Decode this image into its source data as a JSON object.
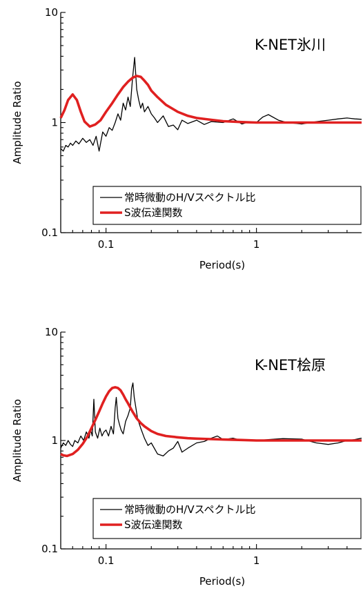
{
  "chart_data": [
    {
      "type": "line",
      "station": "K-NET氷川",
      "xlabel": "Period(s)",
      "ylabel": "Amplitude Ratio",
      "xscale": "log",
      "yscale": "log",
      "xlim": [
        0.05,
        5
      ],
      "ylim": [
        0.1,
        10
      ],
      "xticks": [
        "0.1",
        "1"
      ],
      "yticks": [
        "0.1",
        "1",
        "10"
      ],
      "legend": {
        "placement": "bottom-right"
      },
      "series": [
        {
          "name": "常時微動のH/Vスペクトル比",
          "color": "#000000",
          "x": [
            0.05,
            0.052,
            0.054,
            0.056,
            0.058,
            0.06,
            0.063,
            0.066,
            0.07,
            0.074,
            0.078,
            0.082,
            0.086,
            0.09,
            0.095,
            0.1,
            0.105,
            0.11,
            0.115,
            0.12,
            0.125,
            0.13,
            0.135,
            0.14,
            0.145,
            0.15,
            0.155,
            0.16,
            0.165,
            0.17,
            0.175,
            0.18,
            0.19,
            0.2,
            0.21,
            0.22,
            0.24,
            0.26,
            0.28,
            0.3,
            0.32,
            0.35,
            0.4,
            0.45,
            0.5,
            0.6,
            0.7,
            0.8,
            0.9,
            1.0,
            1.1,
            1.2,
            1.4,
            1.6,
            2.0,
            2.5,
            3.0,
            3.5,
            4.0,
            4.5,
            5.0
          ],
          "values": [
            0.58,
            0.55,
            0.62,
            0.6,
            0.65,
            0.62,
            0.68,
            0.64,
            0.72,
            0.66,
            0.7,
            0.62,
            0.75,
            0.55,
            0.82,
            0.75,
            0.9,
            0.85,
            1.0,
            1.2,
            1.05,
            1.5,
            1.3,
            1.7,
            1.4,
            2.5,
            3.9,
            2.0,
            1.6,
            1.35,
            1.5,
            1.25,
            1.4,
            1.2,
            1.1,
            1.0,
            1.15,
            0.92,
            0.95,
            0.86,
            1.05,
            0.98,
            1.05,
            0.96,
            1.02,
            1.0,
            1.08,
            0.97,
            1.02,
            1.0,
            1.12,
            1.18,
            1.05,
            1.0,
            0.97,
            1.02,
            1.05,
            1.08,
            1.1,
            1.08,
            1.07
          ]
        },
        {
          "name": "S波伝達関数",
          "color": "#e02020",
          "x": [
            0.05,
            0.053,
            0.056,
            0.06,
            0.064,
            0.068,
            0.072,
            0.078,
            0.085,
            0.092,
            0.1,
            0.11,
            0.12,
            0.13,
            0.14,
            0.15,
            0.16,
            0.17,
            0.18,
            0.19,
            0.2,
            0.22,
            0.25,
            0.3,
            0.35,
            0.4,
            0.5,
            0.6,
            0.8,
            1.0,
            1.5,
            2.0,
            3.0,
            5.0
          ],
          "values": [
            1.1,
            1.3,
            1.6,
            1.8,
            1.6,
            1.25,
            1.02,
            0.92,
            0.96,
            1.05,
            1.25,
            1.5,
            1.8,
            2.1,
            2.35,
            2.55,
            2.65,
            2.6,
            2.4,
            2.2,
            1.95,
            1.7,
            1.45,
            1.25,
            1.15,
            1.1,
            1.06,
            1.03,
            1.01,
            1.0,
            1.0,
            1.0,
            1.0,
            1.0
          ]
        }
      ]
    },
    {
      "type": "line",
      "station": "K-NET桧原",
      "xlabel": "Period(s)",
      "ylabel": "Amplitude Ratio",
      "xscale": "log",
      "yscale": "log",
      "xlim": [
        0.05,
        5
      ],
      "ylim": [
        0.1,
        10
      ],
      "xticks": [
        "0.1",
        "1"
      ],
      "yticks": [
        "0.1",
        "1",
        "10"
      ],
      "legend": {
        "placement": "bottom-right"
      },
      "series": [
        {
          "name": "常時微動のH/Vスペクトル比",
          "color": "#000000",
          "x": [
            0.05,
            0.052,
            0.054,
            0.056,
            0.058,
            0.06,
            0.062,
            0.065,
            0.068,
            0.071,
            0.074,
            0.077,
            0.079,
            0.081,
            0.083,
            0.085,
            0.088,
            0.091,
            0.094,
            0.097,
            0.1,
            0.104,
            0.108,
            0.112,
            0.115,
            0.117,
            0.12,
            0.123,
            0.126,
            0.13,
            0.135,
            0.14,
            0.145,
            0.148,
            0.151,
            0.154,
            0.158,
            0.162,
            0.17,
            0.18,
            0.19,
            0.2,
            0.22,
            0.24,
            0.26,
            0.28,
            0.3,
            0.32,
            0.35,
            0.4,
            0.45,
            0.5,
            0.55,
            0.6,
            0.7,
            0.8,
            0.9,
            1.0,
            1.2,
            1.5,
            2.0,
            2.5,
            3.0,
            3.5,
            4.0,
            4.5,
            5.0
          ],
          "values": [
            0.85,
            0.95,
            0.9,
            1.0,
            0.92,
            0.88,
            1.0,
            0.95,
            1.1,
            1.0,
            1.2,
            1.05,
            1.25,
            1.1,
            2.4,
            1.2,
            1.05,
            1.3,
            1.1,
            1.2,
            1.25,
            1.1,
            1.35,
            1.15,
            2.0,
            2.5,
            1.6,
            1.4,
            1.25,
            1.15,
            1.5,
            1.7,
            2.0,
            3.0,
            3.4,
            2.5,
            2.0,
            1.6,
            1.3,
            1.05,
            0.9,
            0.95,
            0.75,
            0.72,
            0.8,
            0.85,
            0.98,
            0.78,
            0.85,
            0.95,
            0.98,
            1.05,
            1.1,
            1.02,
            1.05,
            1.0,
            1.02,
            1.0,
            1.02,
            1.04,
            1.03,
            0.95,
            0.92,
            0.95,
            1.0,
            1.02,
            1.05
          ]
        },
        {
          "name": "S波伝達関数",
          "color": "#e02020",
          "x": [
            0.05,
            0.052,
            0.055,
            0.06,
            0.065,
            0.07,
            0.075,
            0.08,
            0.085,
            0.09,
            0.095,
            0.1,
            0.105,
            0.11,
            0.115,
            0.12,
            0.125,
            0.13,
            0.135,
            0.14,
            0.15,
            0.16,
            0.17,
            0.18,
            0.2,
            0.22,
            0.25,
            0.3,
            0.35,
            0.4,
            0.5,
            0.6,
            0.8,
            1.0,
            1.5,
            2.0,
            3.0,
            5.0
          ],
          "values": [
            0.75,
            0.73,
            0.72,
            0.75,
            0.82,
            0.93,
            1.08,
            1.3,
            1.55,
            1.85,
            2.2,
            2.55,
            2.85,
            3.05,
            3.1,
            3.05,
            2.9,
            2.65,
            2.4,
            2.2,
            1.85,
            1.6,
            1.45,
            1.35,
            1.22,
            1.15,
            1.1,
            1.07,
            1.05,
            1.04,
            1.03,
            1.02,
            1.01,
            1.0,
            1.0,
            1.0,
            1.0,
            1.0
          ]
        }
      ]
    }
  ]
}
